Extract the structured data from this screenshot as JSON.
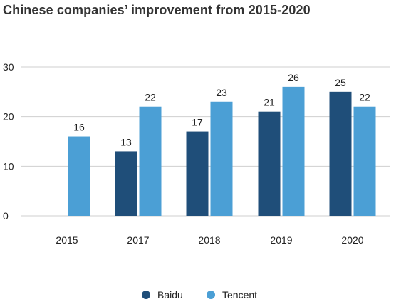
{
  "chart_data": {
    "type": "bar",
    "title": "Chinese companies’ improvement from 2015-2020",
    "xlabel": "",
    "ylabel": "",
    "ylim": [
      0,
      30
    ],
    "yticks": [
      0,
      10,
      20,
      30
    ],
    "grid": true,
    "legend_position": "bottom-center",
    "categories": [
      "2015",
      "2017",
      "2018",
      "2019",
      "2020"
    ],
    "series": [
      {
        "name": "Baidu",
        "color": "#1f4e79",
        "values": [
          null,
          13,
          17,
          21,
          25
        ]
      },
      {
        "name": "Tencent",
        "color": "#4b9fd5",
        "values": [
          16,
          22,
          23,
          26,
          22
        ]
      }
    ]
  }
}
